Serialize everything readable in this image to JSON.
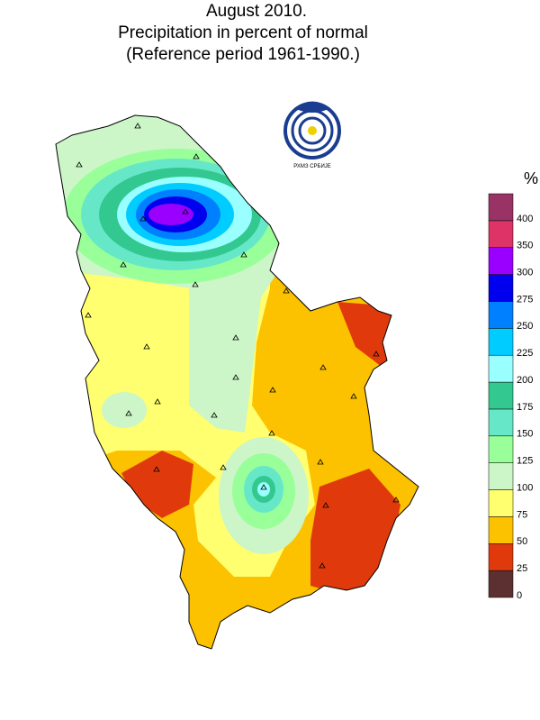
{
  "title": [
    "August 2010.",
    "Precipitation in percent of normal",
    "(Reference period 1961-1990.)"
  ],
  "logo_text": "РХМЗ СРБИЈЕ",
  "legend": {
    "unit": "%",
    "ticks": [
      0,
      25,
      50,
      75,
      100,
      125,
      150,
      175,
      200,
      225,
      250,
      275,
      300,
      350,
      400
    ],
    "colors": [
      "#5c3030",
      "#e03a0c",
      "#fcc200",
      "#ffff70",
      "#ccf5c8",
      "#99ff99",
      "#66e8c8",
      "#33c890",
      "#99ffff",
      "#00ccff",
      "#0080ff",
      "#0000ee",
      "#9900ff",
      "#dd3366",
      "#993366"
    ]
  }
}
